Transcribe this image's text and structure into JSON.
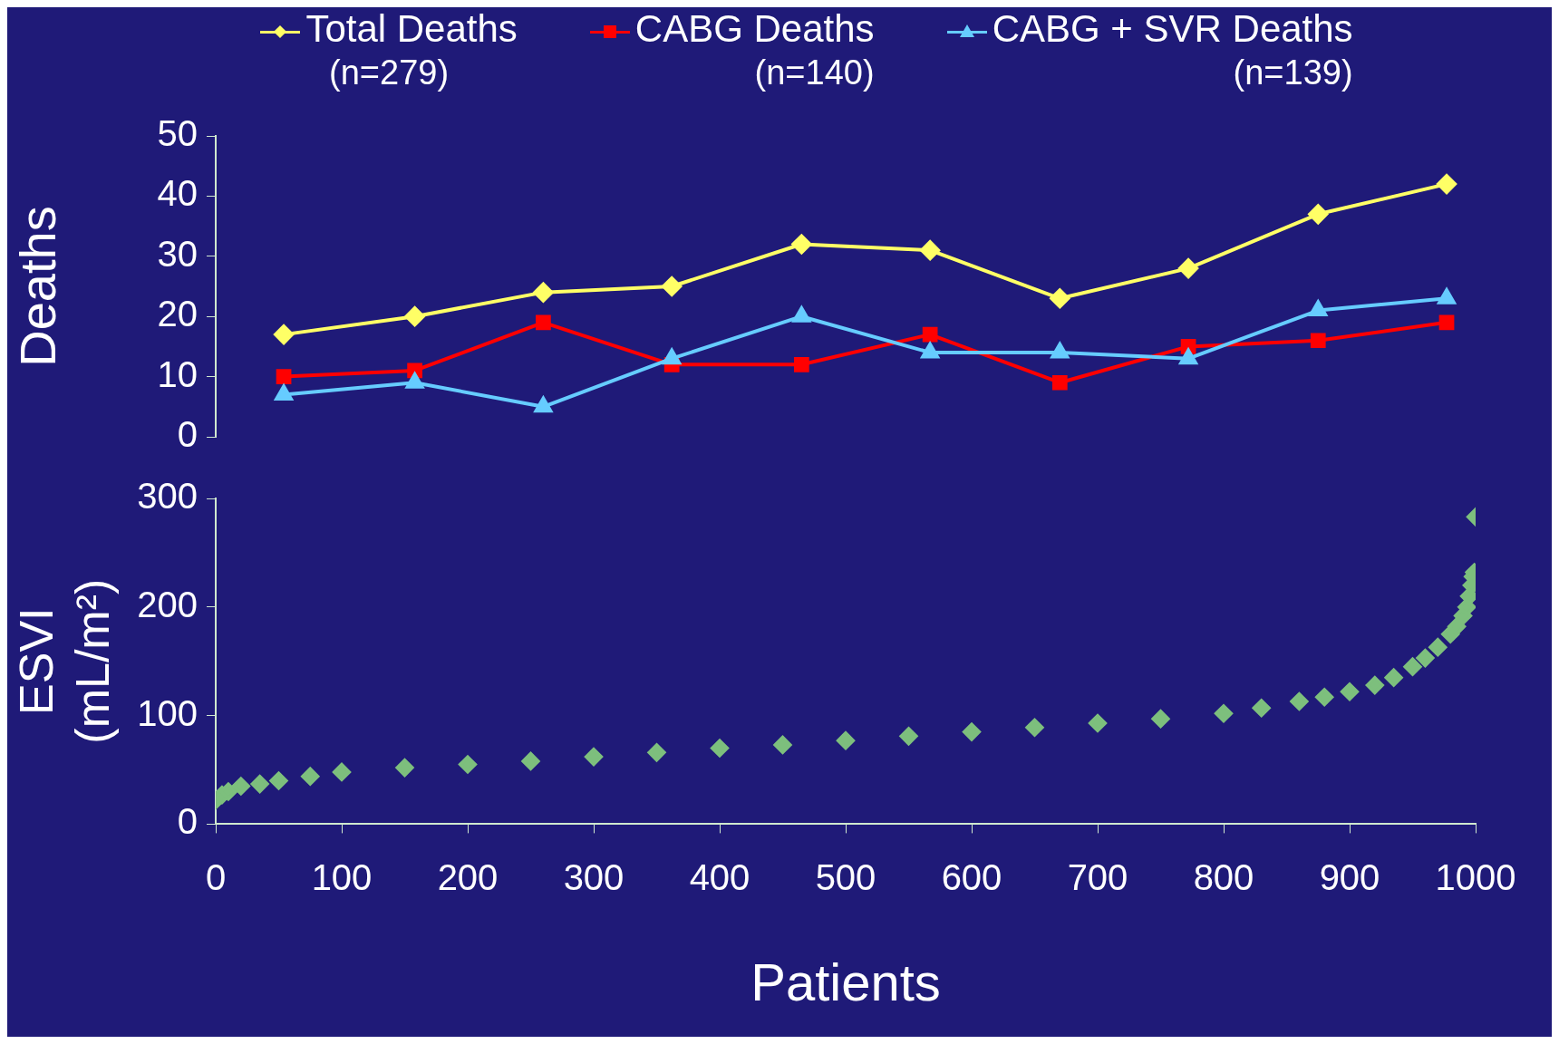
{
  "chart_data": [
    {
      "type": "line",
      "ylabel": "Deaths",
      "legend": "top",
      "grid": false,
      "tick_labels": "y",
      "xlim": [
        0,
        1000
      ],
      "ylim": [
        0,
        50
      ],
      "yticks": [
        0,
        10,
        20,
        30,
        40,
        50
      ],
      "x": [
        54,
        158,
        260,
        362,
        465,
        567,
        670,
        772,
        875,
        977
      ],
      "series": [
        {
          "name": "Total Deaths (n=279)",
          "color": "#ffff66",
          "marker": "diamond",
          "values": [
            17,
            20,
            24,
            25,
            32,
            31,
            23,
            28,
            37,
            42
          ]
        },
        {
          "name": "CABG Deaths (n=140)",
          "color": "#ff0000",
          "marker": "square",
          "values": [
            10,
            11,
            19,
            12,
            12,
            17,
            9,
            15,
            16,
            19
          ]
        },
        {
          "name": "CABG + SVR Deaths (n=139)",
          "color": "#66ccff",
          "marker": "triangle",
          "values": [
            7,
            9,
            5,
            13,
            20,
            14,
            14,
            13,
            21,
            23
          ]
        }
      ]
    },
    {
      "type": "scatter",
      "ylabel": "ESVI (mL/m²)",
      "xlabel": "Patients",
      "grid": false,
      "marker": "diamond",
      "color": "#7dbf7d",
      "xlim": [
        0,
        1000
      ],
      "xticks": [
        0,
        100,
        200,
        300,
        400,
        500,
        600,
        700,
        800,
        900,
        1000
      ],
      "ylim": [
        0,
        300
      ],
      "yticks": [
        0,
        100,
        200,
        300
      ],
      "x": [
        0,
        5,
        10,
        20,
        35,
        50,
        75,
        100,
        150,
        200,
        250,
        300,
        350,
        400,
        450,
        500,
        550,
        600,
        650,
        700,
        750,
        800,
        830,
        860,
        880,
        900,
        920,
        935,
        950,
        960,
        970,
        980,
        985,
        990,
        993,
        995,
        997,
        998,
        999,
        1000
      ],
      "values": [
        22,
        27,
        30,
        35,
        37,
        40,
        44,
        48,
        52,
        55,
        58,
        62,
        66,
        70,
        73,
        77,
        81,
        85,
        89,
        93,
        97,
        102,
        107,
        113,
        117,
        122,
        128,
        135,
        145,
        153,
        163,
        175,
        182,
        192,
        200,
        210,
        220,
        228,
        232,
        283
      ]
    }
  ]
}
